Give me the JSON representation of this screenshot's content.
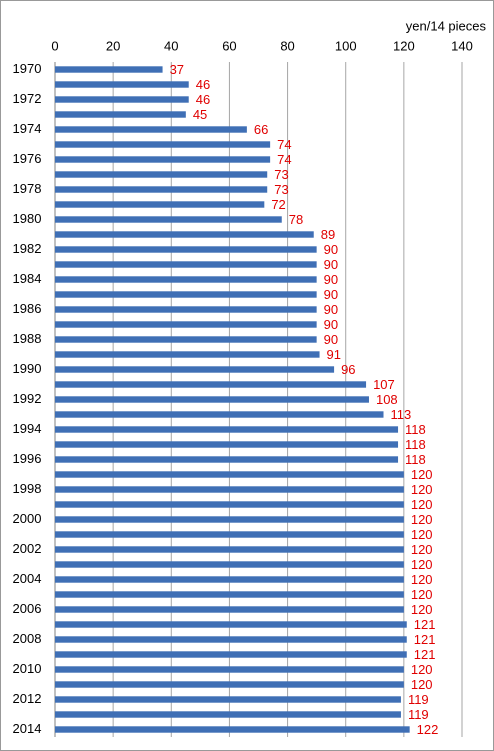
{
  "chart_data": {
    "type": "bar",
    "orientation": "horizontal",
    "x_label": "yen/14 pieces",
    "categories": [
      "1970",
      null,
      "1972",
      null,
      "1974",
      null,
      "1976",
      null,
      "1978",
      null,
      "1980",
      null,
      "1982",
      null,
      "1984",
      null,
      "1986",
      null,
      "1988",
      null,
      "1990",
      null,
      "1992",
      null,
      "1994",
      null,
      "1996",
      null,
      "1998",
      null,
      "2000",
      null,
      "2002",
      null,
      "2004",
      null,
      "2006",
      null,
      "2008",
      null,
      "2010",
      null,
      "2012",
      null,
      "2014"
    ],
    "values": [
      37,
      46,
      46,
      45,
      66,
      74,
      74,
      73,
      73,
      72,
      78,
      89,
      90,
      90,
      90,
      90,
      90,
      90,
      90,
      91,
      96,
      107,
      108,
      113,
      118,
      118,
      118,
      120,
      120,
      120,
      120,
      120,
      120,
      120,
      120,
      120,
      120,
      121,
      121,
      121,
      120,
      120,
      119,
      119,
      122
    ],
    "color": "#3f6fb5",
    "label_color": "#e00000",
    "xlim": [
      0,
      140
    ],
    "xticks": [
      0,
      20,
      40,
      60,
      80,
      100,
      120,
      140
    ],
    "grid": true
  }
}
